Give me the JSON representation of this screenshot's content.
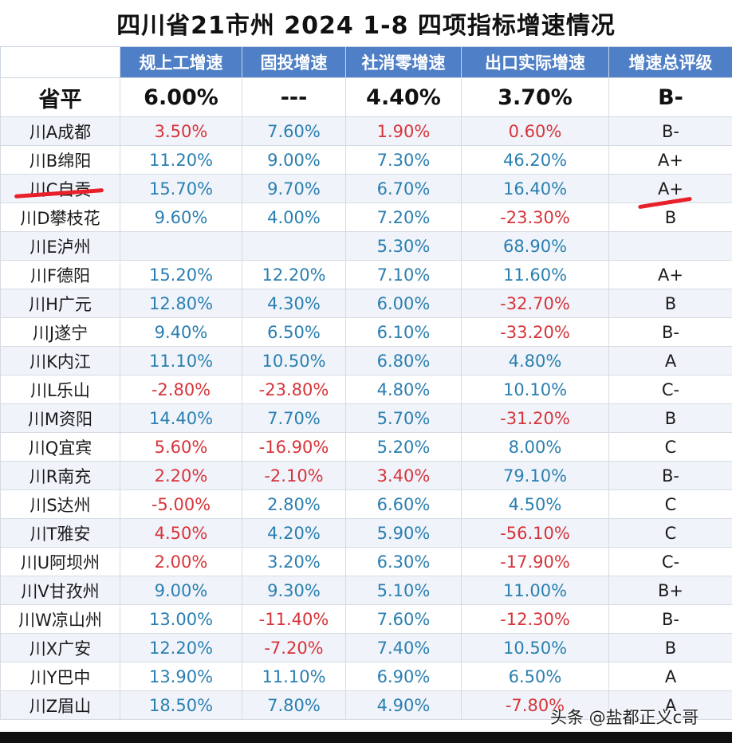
{
  "title": "四川省21市州 2024 1-8 四项指标增速情况",
  "headers": [
    "",
    "规上工增速",
    "固投增速",
    "社消零增速",
    "出口实际增速",
    "增速总评级"
  ],
  "average": {
    "label": "省平",
    "cells": [
      "6.00%",
      "---",
      "4.40%",
      "3.70%",
      "B-"
    ]
  },
  "rows": [
    {
      "city": "川A成都",
      "cells": [
        "3.50%",
        "7.60%",
        "1.90%",
        "0.60%",
        "B-"
      ],
      "colors": [
        "neg",
        "pos",
        "neg",
        "neg",
        "grade"
      ]
    },
    {
      "city": "川B绵阳",
      "cells": [
        "11.20%",
        "9.00%",
        "7.30%",
        "46.20%",
        "A+"
      ],
      "colors": [
        "pos",
        "pos",
        "pos",
        "pos",
        "grade"
      ]
    },
    {
      "city": "川C自贡",
      "cells": [
        "15.70%",
        "9.70%",
        "6.70%",
        "16.40%",
        "A+"
      ],
      "colors": [
        "pos",
        "pos",
        "pos",
        "pos",
        "grade"
      ]
    },
    {
      "city": "川D攀枝花",
      "cells": [
        "9.60%",
        "4.00%",
        "7.20%",
        "-23.30%",
        "B"
      ],
      "colors": [
        "pos",
        "pos",
        "pos",
        "neg",
        "grade"
      ]
    },
    {
      "city": "川E泸州",
      "cells": [
        "",
        "",
        "5.30%",
        "68.90%",
        ""
      ],
      "colors": [
        "pos",
        "pos",
        "pos",
        "pos",
        "grade"
      ]
    },
    {
      "city": "川F德阳",
      "cells": [
        "15.20%",
        "12.20%",
        "7.10%",
        "11.60%",
        "A+"
      ],
      "colors": [
        "pos",
        "pos",
        "pos",
        "pos",
        "grade"
      ]
    },
    {
      "city": "川H广元",
      "cells": [
        "12.80%",
        "4.30%",
        "6.00%",
        "-32.70%",
        "B"
      ],
      "colors": [
        "pos",
        "pos",
        "pos",
        "neg",
        "grade"
      ]
    },
    {
      "city": "川J遂宁",
      "cells": [
        "9.40%",
        "6.50%",
        "6.10%",
        "-33.20%",
        "B-"
      ],
      "colors": [
        "pos",
        "pos",
        "pos",
        "neg",
        "grade"
      ]
    },
    {
      "city": "川K内江",
      "cells": [
        "11.10%",
        "10.50%",
        "6.80%",
        "4.80%",
        "A"
      ],
      "colors": [
        "pos",
        "pos",
        "pos",
        "pos",
        "grade"
      ]
    },
    {
      "city": "川L乐山",
      "cells": [
        "-2.80%",
        "-23.80%",
        "4.80%",
        "10.10%",
        "C-"
      ],
      "colors": [
        "neg",
        "neg",
        "pos",
        "pos",
        "grade"
      ]
    },
    {
      "city": "川M资阳",
      "cells": [
        "14.40%",
        "7.70%",
        "5.70%",
        "-31.20%",
        "B"
      ],
      "colors": [
        "pos",
        "pos",
        "pos",
        "neg",
        "grade"
      ]
    },
    {
      "city": "川Q宜宾",
      "cells": [
        "5.60%",
        "-16.90%",
        "5.20%",
        "8.00%",
        "C"
      ],
      "colors": [
        "neg",
        "neg",
        "pos",
        "pos",
        "grade"
      ]
    },
    {
      "city": "川R南充",
      "cells": [
        "2.20%",
        "-2.10%",
        "3.40%",
        "79.10%",
        "B-"
      ],
      "colors": [
        "neg",
        "neg",
        "neg",
        "pos",
        "grade"
      ]
    },
    {
      "city": "川S达州",
      "cells": [
        "-5.00%",
        "2.80%",
        "6.60%",
        "4.50%",
        "C"
      ],
      "colors": [
        "neg",
        "pos",
        "pos",
        "pos",
        "grade"
      ]
    },
    {
      "city": "川T雅安",
      "cells": [
        "4.50%",
        "4.20%",
        "5.90%",
        "-56.10%",
        "C"
      ],
      "colors": [
        "neg",
        "pos",
        "pos",
        "neg",
        "grade"
      ]
    },
    {
      "city": "川U阿坝州",
      "cells": [
        "2.00%",
        "3.20%",
        "6.30%",
        "-17.90%",
        "C-"
      ],
      "colors": [
        "neg",
        "pos",
        "pos",
        "neg",
        "grade"
      ]
    },
    {
      "city": "川V甘孜州",
      "cells": [
        "9.00%",
        "9.30%",
        "5.10%",
        "11.00%",
        "B+"
      ],
      "colors": [
        "pos",
        "pos",
        "pos",
        "pos",
        "grade"
      ]
    },
    {
      "city": "川W凉山州",
      "cells": [
        "13.00%",
        "-11.40%",
        "7.60%",
        "-12.30%",
        "B-"
      ],
      "colors": [
        "pos",
        "neg",
        "pos",
        "neg",
        "grade"
      ]
    },
    {
      "city": "川X广安",
      "cells": [
        "12.20%",
        "-7.20%",
        "7.40%",
        "10.50%",
        "B"
      ],
      "colors": [
        "pos",
        "neg",
        "pos",
        "pos",
        "grade"
      ]
    },
    {
      "city": "川Y巴中",
      "cells": [
        "13.90%",
        "11.10%",
        "6.90%",
        "6.50%",
        "A"
      ],
      "colors": [
        "pos",
        "pos",
        "pos",
        "pos",
        "grade"
      ]
    },
    {
      "city": "川Z眉山",
      "cells": [
        "18.50%",
        "7.80%",
        "4.90%",
        "-7.80%",
        "A"
      ],
      "colors": [
        "pos",
        "pos",
        "pos",
        "neg",
        "grade"
      ]
    }
  ],
  "watermark": "头条 @盐都正义c哥",
  "colors": {
    "header_bg": "#4f7fc6",
    "positive": "#2a7fb0",
    "negative": "#d6343a",
    "highlight_mark": "#e8202a"
  }
}
